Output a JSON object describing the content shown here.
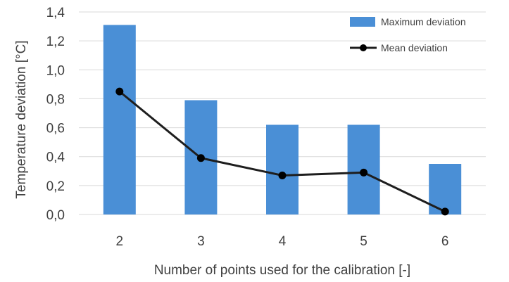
{
  "chart_data": {
    "type": "bar",
    "title": "",
    "xlabel": "Number of points used for the calibration [-]",
    "ylabel": "Temperature deviation [°C]",
    "categories": [
      "2",
      "3",
      "4",
      "5",
      "6"
    ],
    "ylim": [
      0,
      1.4
    ],
    "yticks": [
      "0,0",
      "0,2",
      "0,4",
      "0,6",
      "0,8",
      "1,0",
      "1,2",
      "1,4"
    ],
    "grid": true,
    "legend_position": "top-right",
    "series": [
      {
        "name": "Maximum deviation",
        "type": "bar",
        "color": "#4a8fd6",
        "values": [
          1.31,
          0.79,
          0.62,
          0.62,
          0.35
        ]
      },
      {
        "name": "Mean deviation",
        "type": "line",
        "color": "#1e1e1e",
        "values": [
          0.85,
          0.39,
          0.27,
          0.29,
          0.02
        ]
      }
    ]
  }
}
